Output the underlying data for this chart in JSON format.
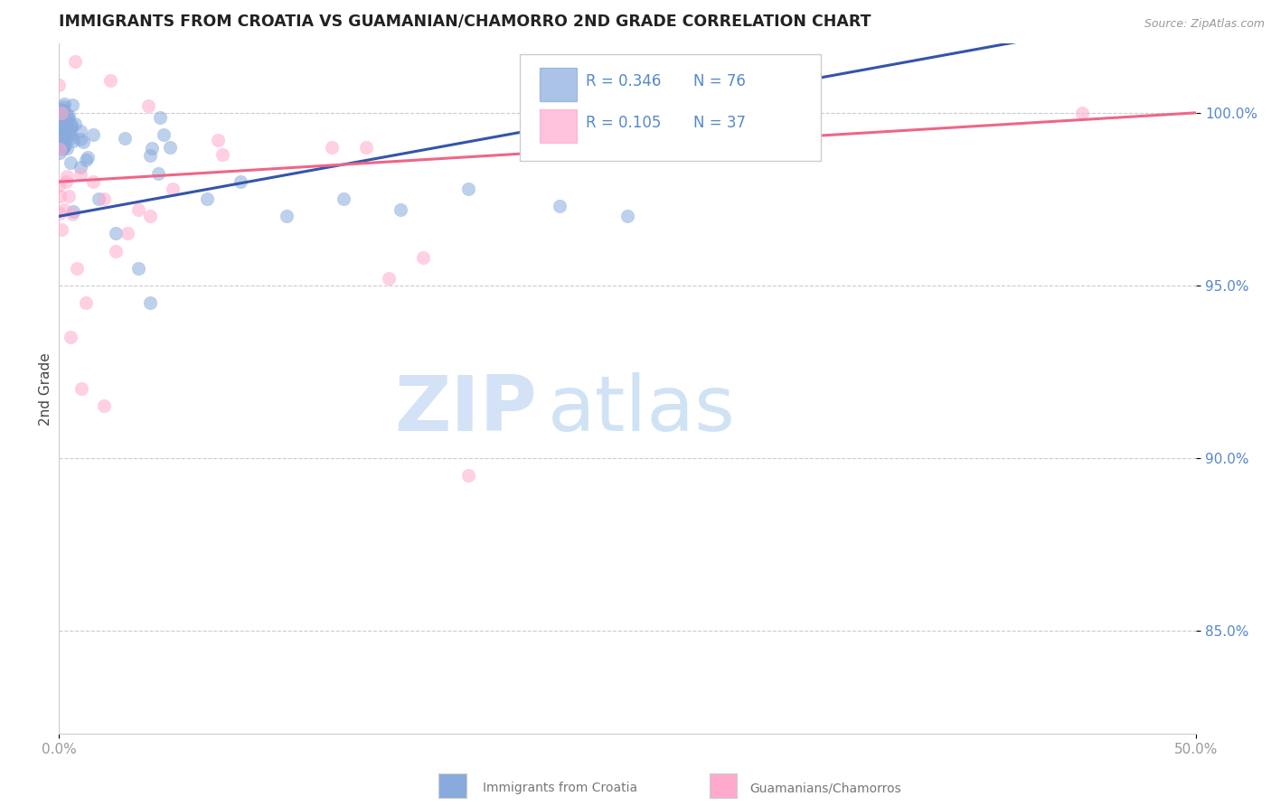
{
  "title": "IMMIGRANTS FROM CROATIA VS GUAMANIAN/CHAMORRO 2ND GRADE CORRELATION CHART",
  "source_text": "Source: ZipAtlas.com",
  "ylabel": "2nd Grade",
  "xlim": [
    0.0,
    50.0
  ],
  "ylim": [
    82.0,
    102.0
  ],
  "yticks": [
    85.0,
    90.0,
    95.0,
    100.0
  ],
  "ytick_labels": [
    "85.0%",
    "90.0%",
    "95.0%",
    "100.0%"
  ],
  "xtick_vals": [
    0.0,
    50.0
  ],
  "xtick_labels": [
    "0.0%",
    "50.0%"
  ],
  "legend_blue_r": "R = 0.346",
  "legend_blue_n": "N = 76",
  "legend_pink_r": "R = 0.105",
  "legend_pink_n": "N = 37",
  "legend_label_blue": "Immigrants from Croatia",
  "legend_label_pink": "Guamanians/Chamorros",
  "blue_color": "#88AADD",
  "pink_color": "#FFAACC",
  "blue_line_color": "#3355AA",
  "pink_line_color": "#EE6688",
  "background_color": "#FFFFFF",
  "grid_color": "#CCCCCC",
  "title_color": "#222222",
  "tick_color": "#5588CC",
  "watermark_zip_color": "#CCDDF5",
  "watermark_atlas_color": "#AACCEE"
}
